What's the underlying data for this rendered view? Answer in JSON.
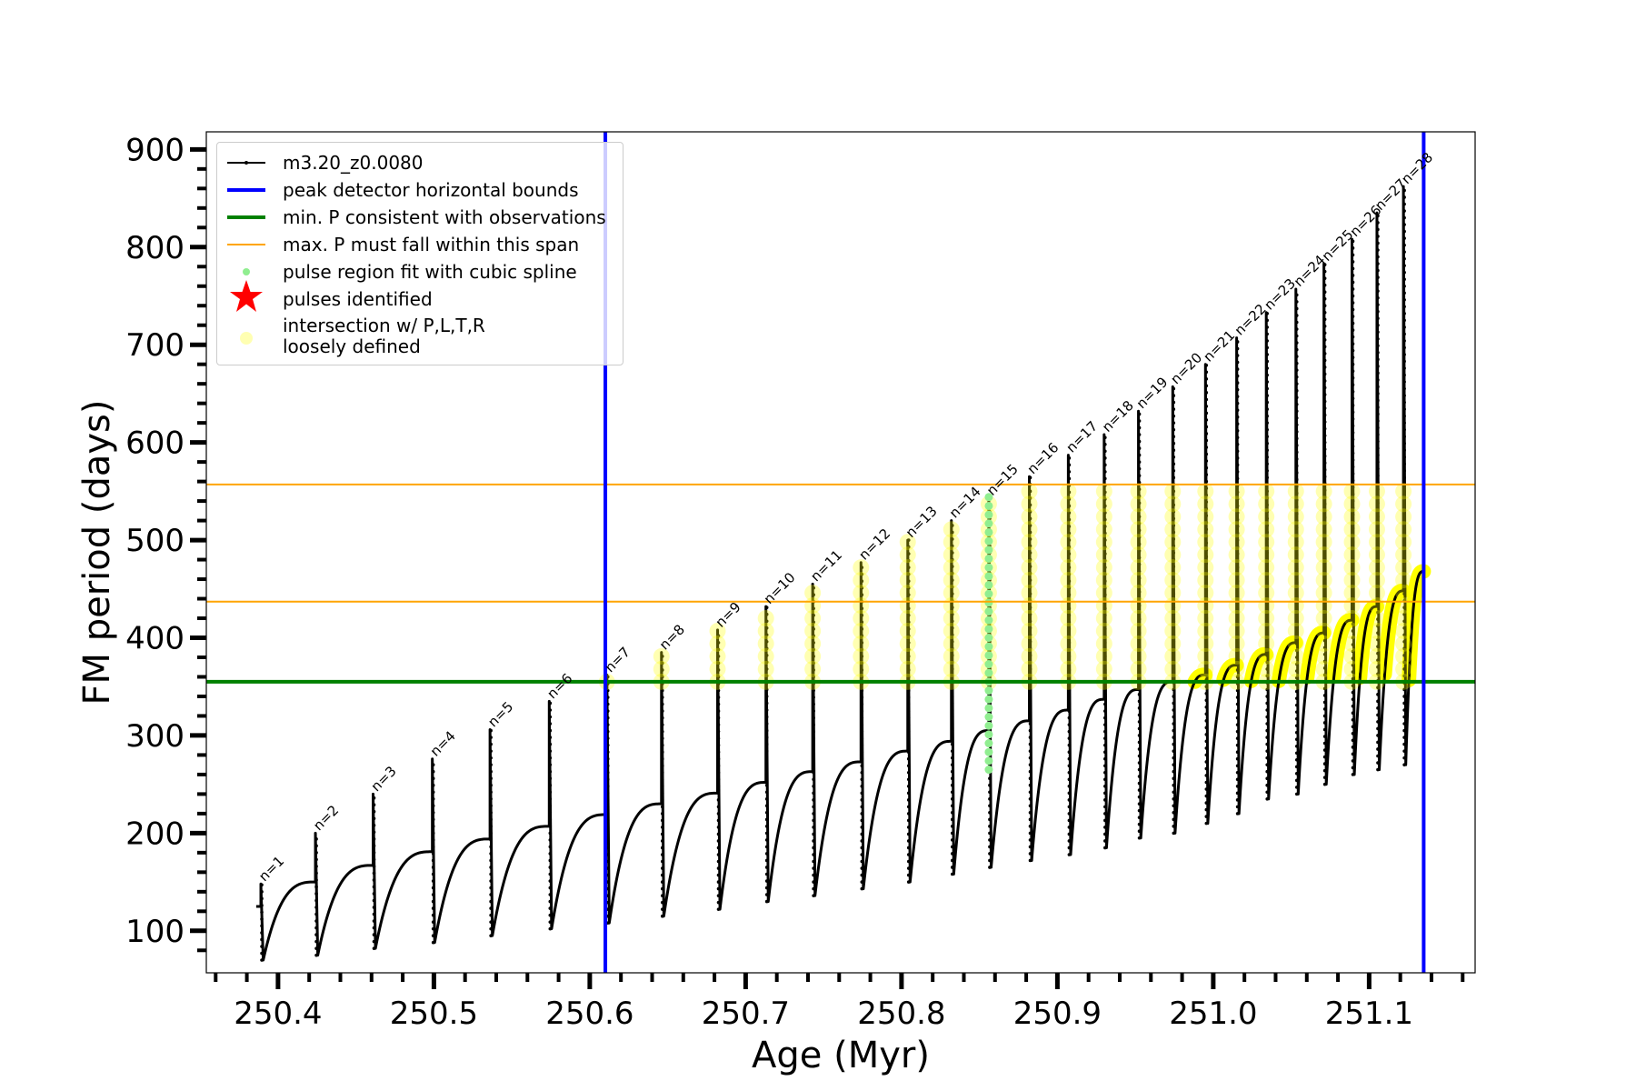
{
  "chart_data": {
    "type": "line",
    "xlabel": "Age (Myr)",
    "ylabel": "FM period (days)",
    "xlim": [
      250.354,
      251.168
    ],
    "ylim": [
      57,
      918
    ],
    "xticks": [
      "250.4",
      "250.5",
      "250.6",
      "250.7",
      "250.8",
      "250.9",
      "251.0",
      "251.1"
    ],
    "xtick_values": [
      250.4,
      250.5,
      250.6,
      250.7,
      250.8,
      250.9,
      251.0,
      251.1
    ],
    "yticks": [
      "100",
      "200",
      "300",
      "400",
      "500",
      "600",
      "700",
      "800",
      "900"
    ],
    "ytick_values": [
      100,
      200,
      300,
      400,
      500,
      600,
      700,
      800,
      900
    ],
    "track": {
      "name": "m3.20_z0.0080",
      "start_age": 250.386,
      "start_value": 125,
      "end_age": 251.135,
      "end_value": 468,
      "pulses": [
        {
          "label": "n=1",
          "age": 250.389,
          "plateau": 125,
          "peak": 148,
          "trough": 70
        },
        {
          "label": "n=2",
          "age": 250.424,
          "plateau": 150,
          "peak": 200,
          "trough": 75
        },
        {
          "label": "n=3",
          "age": 250.461,
          "plateau": 167,
          "peak": 240,
          "trough": 82
        },
        {
          "label": "n=4",
          "age": 250.499,
          "plateau": 181,
          "peak": 276,
          "trough": 88
        },
        {
          "label": "n=5",
          "age": 250.536,
          "plateau": 194,
          "peak": 306,
          "trough": 95
        },
        {
          "label": "n=6",
          "age": 250.574,
          "plateau": 207,
          "peak": 335,
          "trough": 102
        },
        {
          "label": "n=7",
          "age": 250.611,
          "plateau": 219,
          "peak": 362,
          "trough": 108
        },
        {
          "label": "n=8",
          "age": 250.646,
          "plateau": 230,
          "peak": 385,
          "trough": 115
        },
        {
          "label": "n=9",
          "age": 250.682,
          "plateau": 241,
          "peak": 408,
          "trough": 122
        },
        {
          "label": "n=10",
          "age": 250.713,
          "plateau": 252,
          "peak": 432,
          "trough": 130
        },
        {
          "label": "n=11",
          "age": 250.743,
          "plateau": 263,
          "peak": 455,
          "trough": 136
        },
        {
          "label": "n=12",
          "age": 250.774,
          "plateau": 273,
          "peak": 477,
          "trough": 143
        },
        {
          "label": "n=13",
          "age": 250.804,
          "plateau": 284,
          "peak": 500,
          "trough": 150
        },
        {
          "label": "n=14",
          "age": 250.832,
          "plateau": 294,
          "peak": 520,
          "trough": 158
        },
        {
          "label": "n=15",
          "age": 250.856,
          "plateau": 305,
          "peak": 543,
          "trough": 165
        },
        {
          "label": "n=16",
          "age": 250.882,
          "plateau": 315,
          "peak": 565,
          "trough": 172
        },
        {
          "label": "n=17",
          "age": 250.907,
          "plateau": 326,
          "peak": 587,
          "trough": 178
        },
        {
          "label": "n=18",
          "age": 250.93,
          "plateau": 337,
          "peak": 608,
          "trough": 185
        },
        {
          "label": "n=19",
          "age": 250.952,
          "plateau": 347,
          "peak": 632,
          "trough": 195
        },
        {
          "label": "n=20",
          "age": 250.974,
          "plateau": 355,
          "peak": 657,
          "trough": 200
        },
        {
          "label": "n=21",
          "age": 250.995,
          "plateau": 362,
          "peak": 680,
          "trough": 210
        },
        {
          "label": "n=22",
          "age": 251.015,
          "plateau": 372,
          "peak": 707,
          "trough": 220
        },
        {
          "label": "n=23",
          "age": 251.034,
          "plateau": 383,
          "peak": 733,
          "trough": 235
        },
        {
          "label": "n=24",
          "age": 251.053,
          "plateau": 395,
          "peak": 757,
          "trough": 240
        },
        {
          "label": "n=25",
          "age": 251.071,
          "plateau": 405,
          "peak": 783,
          "trough": 250
        },
        {
          "label": "n=26",
          "age": 251.089,
          "plateau": 418,
          "peak": 808,
          "trough": 260
        },
        {
          "label": "n=27",
          "age": 251.105,
          "plateau": 432,
          "peak": 835,
          "trough": 265
        },
        {
          "label": "n=28",
          "age": 251.122,
          "plateau": 448,
          "peak": 862,
          "trough": 270
        }
      ]
    },
    "vlines": {
      "label": "peak detector horizontal bounds",
      "ages": [
        250.61,
        251.135
      ],
      "color": "#0000ff"
    },
    "min_p": {
      "label": "min. P consistent with observations",
      "value": 355,
      "color": "#008000"
    },
    "max_p_span": {
      "label": "max. P must fall within this span",
      "values": [
        437,
        557
      ],
      "color": "#ffa500"
    },
    "spline_fit": {
      "label": "pulse region fit with cubic spline",
      "pulse": "n=15",
      "range": [
        265,
        545
      ],
      "color": "#90ee90"
    },
    "pulses_identified": {
      "label": "pulses identified",
      "color": "#ff0000"
    },
    "intersection": {
      "label_line1": "intersection w/ P,L,T,R",
      "label_line2": "loosely defined",
      "color": "#ffff00"
    },
    "legend_position": "top-left",
    "grid": false
  }
}
